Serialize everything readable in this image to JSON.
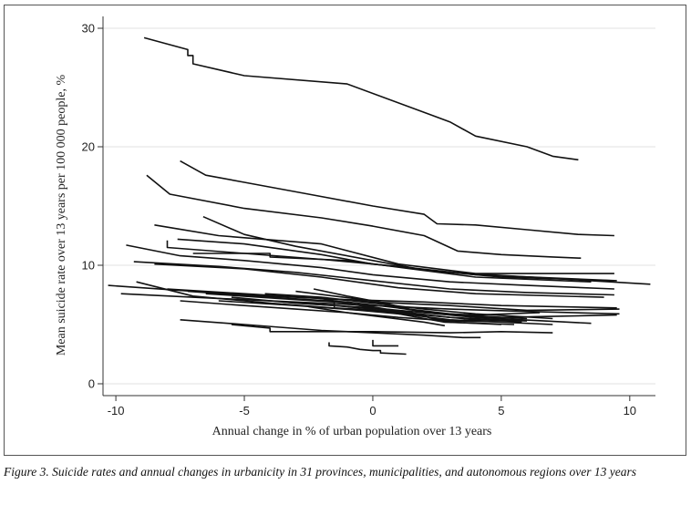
{
  "chart_data": {
    "type": "line",
    "title": "",
    "xlabel": "Annual change in % of urban population over 13 years",
    "ylabel": "Mean suicide rate over 13 years per 100 000 people, %",
    "xlim": [
      -10.5,
      11
    ],
    "ylim": [
      -1,
      31
    ],
    "xticks": [
      -10,
      -5,
      0,
      5,
      10
    ],
    "yticks": [
      0,
      10,
      20,
      30
    ],
    "grid": true,
    "legend": "none",
    "line_color": "#111111",
    "series": [
      {
        "values": [
          [
            -8.9,
            29.2
          ],
          [
            -7.2,
            28.2
          ],
          [
            -7.2,
            27.7
          ],
          [
            -7.0,
            27.7
          ],
          [
            -7.0,
            27.0
          ],
          [
            -5,
            26.0
          ],
          [
            -1,
            25.3
          ],
          [
            3,
            22.1
          ],
          [
            4,
            20.9
          ],
          [
            6,
            20.0
          ],
          [
            7,
            19.2
          ],
          [
            8,
            18.9
          ]
        ]
      },
      {
        "values": [
          [
            -7.5,
            18.8
          ],
          [
            -6.5,
            17.6
          ],
          [
            -5,
            17.0
          ],
          [
            -2.5,
            16.0
          ],
          [
            0,
            15.0
          ],
          [
            2,
            14.3
          ],
          [
            2.5,
            13.5
          ],
          [
            4,
            13.4
          ],
          [
            6,
            13.0
          ],
          [
            8,
            12.6
          ],
          [
            9.4,
            12.5
          ]
        ]
      },
      {
        "values": [
          [
            -8.8,
            17.6
          ],
          [
            -7.9,
            16.0
          ],
          [
            -5,
            14.8
          ],
          [
            -2,
            14.0
          ],
          [
            0,
            13.3
          ],
          [
            2,
            12.5
          ],
          [
            3.3,
            11.2
          ],
          [
            5,
            10.9
          ],
          [
            7,
            10.7
          ],
          [
            8.1,
            10.6
          ]
        ]
      },
      {
        "values": [
          [
            -6.6,
            14.1
          ],
          [
            -5,
            12.6
          ],
          [
            -3,
            11.6
          ],
          [
            0,
            10.4
          ],
          [
            2,
            9.6
          ],
          [
            5,
            9.0
          ],
          [
            9.4,
            8.7
          ]
        ]
      },
      {
        "values": [
          [
            -8.5,
            13.4
          ],
          [
            -6,
            12.5
          ],
          [
            -2,
            11.8
          ],
          [
            1,
            10.1
          ],
          [
            4,
            9.3
          ],
          [
            9.4,
            9.3
          ]
        ]
      },
      {
        "values": [
          [
            -7.6,
            12.2
          ],
          [
            -5,
            11.8
          ],
          [
            -2,
            10.9
          ],
          [
            0,
            10.1
          ],
          [
            3,
            9.4
          ],
          [
            10.8,
            8.4
          ]
        ]
      },
      {
        "values": [
          [
            -8,
            12.1
          ],
          [
            -8,
            11.5
          ],
          [
            -5,
            11.0
          ],
          [
            -2,
            10.5
          ],
          [
            1,
            9.9
          ],
          [
            4,
            9.2
          ],
          [
            9.5,
            8.7
          ]
        ]
      },
      {
        "values": [
          [
            -9.6,
            11.7
          ],
          [
            -7.5,
            10.8
          ],
          [
            -5,
            10.4
          ],
          [
            -2,
            9.8
          ],
          [
            0,
            9.2
          ],
          [
            3,
            8.6
          ],
          [
            6,
            8.3
          ],
          [
            9.4,
            8.0
          ]
        ]
      },
      {
        "values": [
          [
            -7,
            11.0
          ],
          [
            -4,
            11.0
          ],
          [
            -4,
            10.7
          ],
          [
            -1,
            10.4
          ],
          [
            1.5,
            9.7
          ],
          [
            4,
            9.0
          ],
          [
            8.5,
            8.6
          ]
        ]
      },
      {
        "values": [
          [
            -9.3,
            10.3
          ],
          [
            -6,
            9.9
          ],
          [
            -3,
            9.4
          ],
          [
            0,
            8.7
          ],
          [
            3,
            8.0
          ],
          [
            6,
            7.7
          ],
          [
            9.4,
            7.5
          ]
        ]
      },
      {
        "values": [
          [
            -8.5,
            10.1
          ],
          [
            -5,
            9.7
          ],
          [
            -2,
            9.0
          ],
          [
            1,
            8.1
          ],
          [
            4,
            7.6
          ],
          [
            9,
            7.3
          ]
        ]
      },
      {
        "values": [
          [
            -10.3,
            8.3
          ],
          [
            -7,
            7.8
          ],
          [
            -4,
            7.4
          ],
          [
            -1,
            7.1
          ],
          [
            2,
            6.9
          ],
          [
            5,
            6.6
          ],
          [
            9.5,
            6.4
          ]
        ]
      },
      {
        "values": [
          [
            -9.8,
            7.6
          ],
          [
            -6,
            7.2
          ],
          [
            -3,
            6.9
          ],
          [
            0,
            6.6
          ],
          [
            3,
            6.3
          ],
          [
            6,
            6.1
          ],
          [
            9.6,
            5.9
          ]
        ]
      },
      {
        "values": [
          [
            -9.2,
            8.6
          ],
          [
            -7,
            7.4
          ],
          [
            -4,
            6.8
          ],
          [
            -1,
            6.3
          ],
          [
            2,
            5.8
          ],
          [
            4,
            5.4
          ],
          [
            6,
            5.3
          ]
        ]
      },
      {
        "values": [
          [
            -7.2,
            7.8
          ],
          [
            -4,
            7.3
          ],
          [
            -1,
            6.9
          ],
          [
            1,
            6.4
          ],
          [
            3,
            5.9
          ],
          [
            5,
            5.6
          ],
          [
            9.5,
            5.8
          ]
        ]
      },
      {
        "values": [
          [
            -6.5,
            7.6
          ],
          [
            -3,
            7.1
          ],
          [
            -1.5,
            6.9
          ],
          [
            -1.5,
            6.4
          ],
          [
            1,
            6.1
          ],
          [
            3,
            5.6
          ],
          [
            5.8,
            5.3
          ]
        ]
      },
      {
        "values": [
          [
            -5.5,
            7.3
          ],
          [
            -3,
            6.8
          ],
          [
            0,
            6.4
          ],
          [
            2,
            6.0
          ],
          [
            4,
            5.6
          ],
          [
            8.5,
            5.1
          ]
        ]
      },
      {
        "values": [
          [
            -6,
            7.0
          ],
          [
            -3,
            6.6
          ],
          [
            -0.5,
            6.2
          ],
          [
            1.5,
            5.8
          ],
          [
            3,
            5.4
          ],
          [
            7,
            5.0
          ]
        ]
      },
      {
        "values": [
          [
            -4.2,
            7.6
          ],
          [
            -2,
            7.3
          ],
          [
            0,
            6.8
          ],
          [
            2,
            6.3
          ],
          [
            4,
            5.9
          ],
          [
            7,
            5.5
          ]
        ]
      },
      {
        "values": [
          [
            -3,
            7.8
          ],
          [
            -1.5,
            7.4
          ],
          [
            0,
            7.0
          ],
          [
            1,
            6.4
          ],
          [
            2.5,
            5.9
          ],
          [
            4,
            5.7
          ],
          [
            6,
            5.5
          ]
        ]
      },
      {
        "values": [
          [
            -2.3,
            7.3
          ],
          [
            -1,
            6.8
          ],
          [
            0.5,
            6.2
          ],
          [
            2,
            5.7
          ],
          [
            3,
            5.2
          ],
          [
            5,
            5.0
          ]
        ]
      },
      {
        "values": [
          [
            -8.0,
            8.0
          ],
          [
            -5,
            7.6
          ],
          [
            -2,
            7.2
          ],
          [
            0,
            6.9
          ],
          [
            3,
            6.6
          ],
          [
            6,
            6.2
          ],
          [
            9.6,
            6.3
          ]
        ]
      },
      {
        "values": [
          [
            -3.5,
            6.9
          ],
          [
            -1.5,
            6.6
          ],
          [
            0,
            6.3
          ],
          [
            1.5,
            5.7
          ],
          [
            2.8,
            5.2
          ],
          [
            5.5,
            5.0
          ]
        ]
      },
      {
        "values": [
          [
            -2.5,
            6.5
          ],
          [
            -1,
            6.0
          ],
          [
            0.5,
            5.6
          ],
          [
            2,
            5.2
          ],
          [
            2.8,
            4.9
          ]
        ]
      },
      {
        "values": [
          [
            -1.8,
            7.0
          ],
          [
            -0.3,
            6.6
          ],
          [
            0.5,
            6.3
          ],
          [
            1.5,
            6.0
          ],
          [
            2.5,
            5.4
          ],
          [
            4.2,
            5.3
          ]
        ]
      },
      {
        "values": [
          [
            -7.5,
            7.0
          ],
          [
            -5,
            6.6
          ],
          [
            -3,
            6.3
          ],
          [
            -1,
            6.0
          ],
          [
            1,
            5.6
          ],
          [
            3,
            5.3
          ],
          [
            5.8,
            5.2
          ]
        ]
      },
      {
        "values": [
          [
            -7.5,
            5.4
          ],
          [
            -5,
            5.0
          ],
          [
            -2,
            4.5
          ],
          [
            0,
            4.3
          ],
          [
            2,
            4.1
          ],
          [
            3.5,
            3.9
          ],
          [
            4.2,
            3.9
          ]
        ]
      },
      {
        "values": [
          [
            -5.5,
            5.0
          ],
          [
            -4,
            4.7
          ],
          [
            -4,
            4.4
          ],
          [
            0,
            4.4
          ],
          [
            3,
            4.3
          ],
          [
            5,
            4.4
          ],
          [
            7,
            4.3
          ]
        ]
      },
      {
        "values": [
          [
            -1.7,
            3.5
          ],
          [
            -1.7,
            3.2
          ],
          [
            -1,
            3.1
          ],
          [
            -0.5,
            2.9
          ],
          [
            0,
            2.8
          ],
          [
            0.3,
            2.8
          ],
          [
            0.3,
            2.6
          ],
          [
            1.3,
            2.5
          ]
        ]
      },
      {
        "values": [
          [
            0,
            3.7
          ],
          [
            0,
            3.2
          ],
          [
            1,
            3.2
          ]
        ]
      },
      {
        "values": [
          [
            -2.3,
            8.0
          ],
          [
            -1,
            7.4
          ],
          [
            0.5,
            6.8
          ],
          [
            2,
            6.0
          ],
          [
            4,
            5.8
          ],
          [
            6.5,
            6.0
          ]
        ]
      }
    ]
  },
  "caption": "Figure 3. Suicide rates and annual changes in urbanicity in 31 provinces, municipalities, and autonomous regions over 13 years"
}
